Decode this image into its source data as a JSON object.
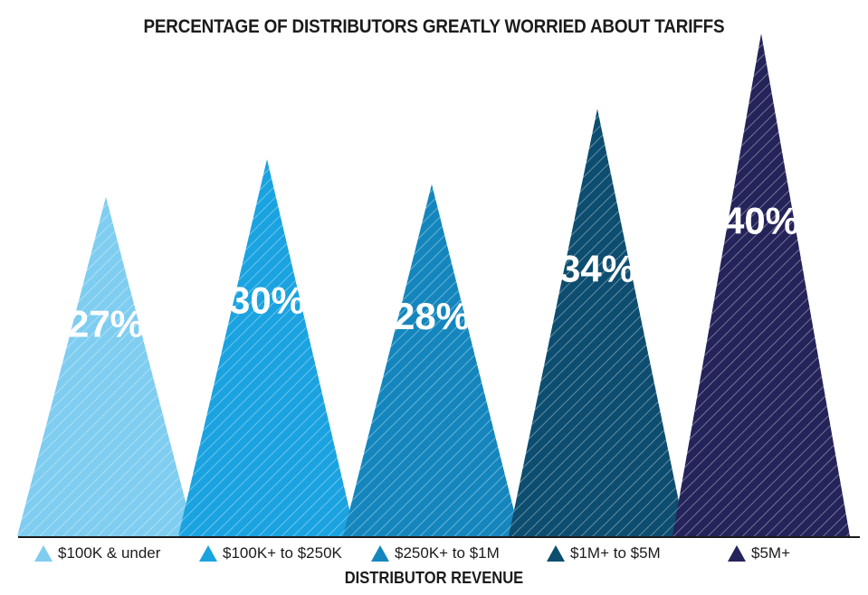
{
  "chart_data": {
    "type": "bar",
    "title": "PERCENTAGE OF DISTRIBUTORS GREATLY WORRIED ABOUT TARIFFS",
    "xlabel": "DISTRIBUTOR REVENUE",
    "ylabel": "",
    "categories": [
      "$100K & under",
      "$100K+ to $250K",
      "$250K+ to $1M",
      "$1M+ to $5M",
      "$5M+"
    ],
    "values": [
      27,
      30,
      28,
      34,
      40
    ],
    "value_labels": [
      "27%",
      "30%",
      "28%",
      "34%",
      "40%"
    ],
    "colors": [
      "#7fcdf0",
      "#1aa3e0",
      "#1486bd",
      "#0d4d6f",
      "#24235a"
    ],
    "ylim": [
      0,
      40
    ],
    "grid": false,
    "legend": "bottom",
    "mark_shape": "triangle",
    "fill_pattern": "diagonal-hatch"
  }
}
